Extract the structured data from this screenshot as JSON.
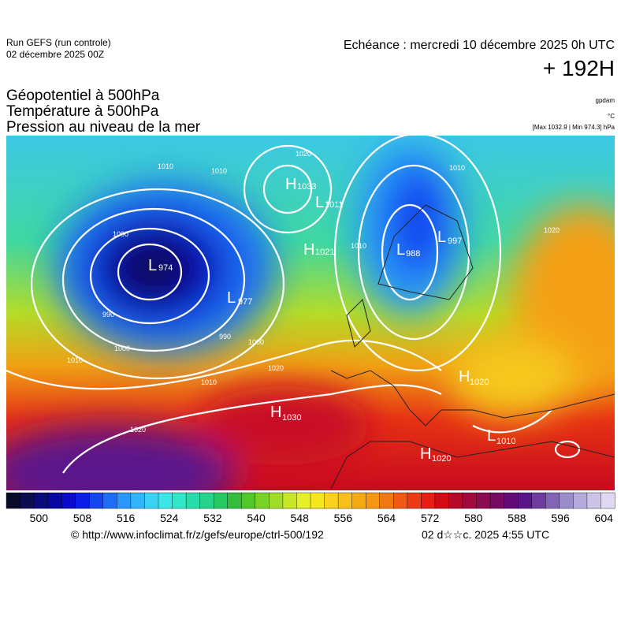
{
  "header": {
    "run": "Run GEFS (run controle)",
    "run_date": "02 décembre 2025 00Z",
    "valid": "Echéance : mercredi 10 décembre 2025 0h UTC",
    "lead": "+ 192H",
    "titles": [
      "Géopotentiel à 500hPa",
      "Température à 500hPa",
      "Pression au niveau de la mer"
    ],
    "units": [
      "gpdam",
      "°C",
      "[Max 1032.9 | Min 974.3] hPa"
    ]
  },
  "map": {
    "centers": [
      {
        "letter": "L",
        "value": "974"
      },
      {
        "letter": "H",
        "value": "1033"
      },
      {
        "letter": "L",
        "value": "1011"
      },
      {
        "letter": "H",
        "value": "1021"
      },
      {
        "letter": "L",
        "value": "977"
      },
      {
        "letter": "L",
        "value": "988"
      },
      {
        "letter": "L",
        "value": "997"
      },
      {
        "letter": "H",
        "value": "1030"
      },
      {
        "letter": "H",
        "value": "1020"
      },
      {
        "letter": "L",
        "value": "1010"
      },
      {
        "letter": "H",
        "value": "1020"
      }
    ],
    "contour_labels": [
      "1010",
      "1010",
      "1000",
      "990",
      "1000",
      "990",
      "1010",
      "1020",
      "1010",
      "1020",
      "1000",
      "1020",
      "1010",
      "1020",
      "1010"
    ]
  },
  "colorbar": {
    "range": [
      494,
      606
    ],
    "ticks": [
      500,
      508,
      516,
      524,
      532,
      540,
      548,
      556,
      564,
      572,
      580,
      588,
      596,
      604
    ],
    "colors": [
      "#0a0a2a",
      "#0c0c50",
      "#0a0a78",
      "#0808a0",
      "#0a0ac8",
      "#0a1ee6",
      "#1446f0",
      "#1e6ef5",
      "#2896fa",
      "#32b4fa",
      "#3cd2f5",
      "#3ce6e6",
      "#32e6c8",
      "#28dcaa",
      "#28d28c",
      "#28c864",
      "#32be3c",
      "#50c828",
      "#78d228",
      "#a0dc28",
      "#c8e628",
      "#e6f028",
      "#f5e61e",
      "#fad21e",
      "#fabe1e",
      "#f5aa14",
      "#f59614",
      "#f07814",
      "#f05a14",
      "#eb3c14",
      "#e61e14",
      "#d20a14",
      "#b40a28",
      "#a00a3c",
      "#8c0a50",
      "#780a64",
      "#640a78",
      "#5a148c",
      "#6e3ca0",
      "#8264b4",
      "#9a8cc8",
      "#b4aadc",
      "#ccc4e6",
      "#e0d8f0"
    ]
  },
  "footer": {
    "source": "© http://www.infoclimat.fr/z/gefs/europe/ctrl-500/192",
    "generated": "02 d☆☆c. 2025  4:55 UTC"
  }
}
